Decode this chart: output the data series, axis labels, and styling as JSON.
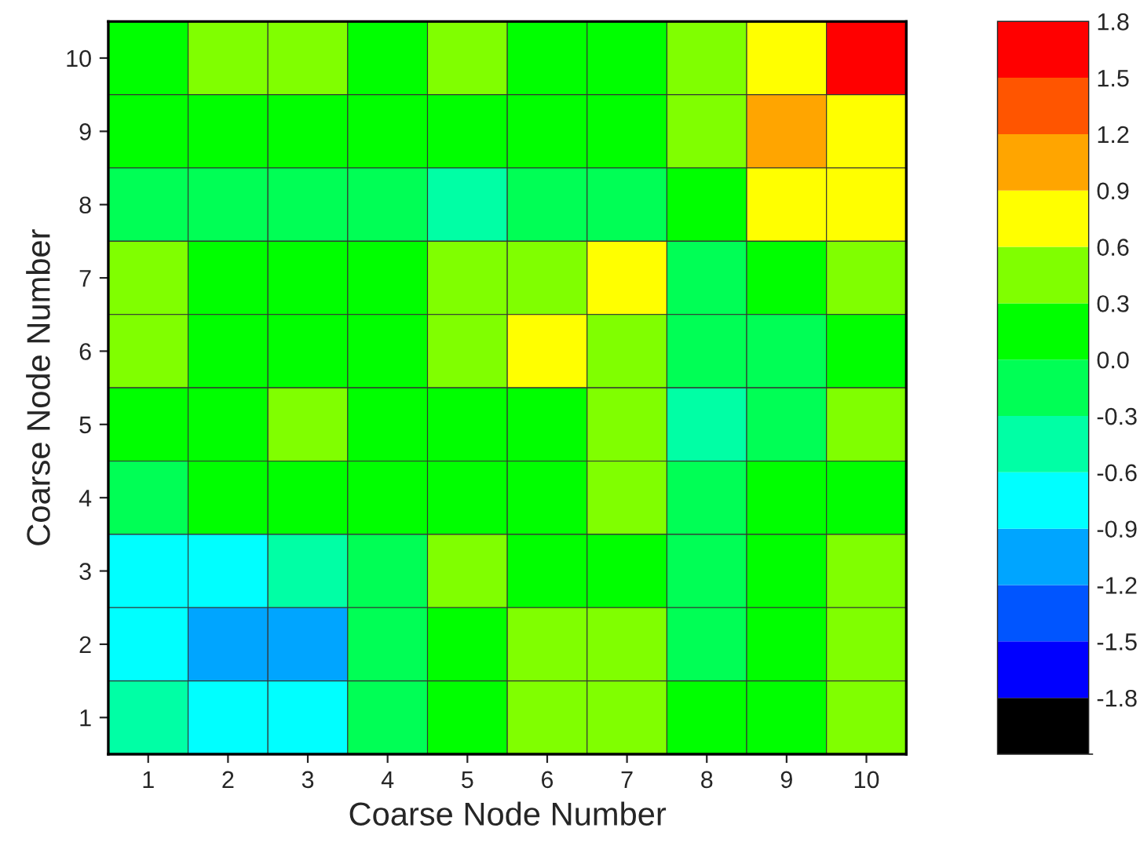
{
  "chart_data": {
    "type": "heatmap",
    "xlabel": "Coarse Node Number",
    "ylabel": "Coarse Node Number",
    "categories": [
      "1",
      "2",
      "3",
      "4",
      "5",
      "6",
      "7",
      "8",
      "9",
      "10"
    ],
    "y_categories": [
      "10",
      "9",
      "8",
      "7",
      "6",
      "5",
      "4",
      "3",
      "2",
      "1"
    ],
    "cells": [
      [
        0.25,
        0.4,
        0.35,
        0.2,
        0.35,
        0.2,
        0.1,
        0.35,
        0.8,
        1.6
      ],
      [
        0.1,
        0.25,
        0.25,
        0.15,
        0.05,
        0.1,
        0.2,
        0.35,
        1.0,
        0.75
      ],
      [
        -0.1,
        -0.1,
        -0.1,
        -0.1,
        -0.35,
        -0.1,
        -0.05,
        0.15,
        0.65,
        0.65
      ],
      [
        0.55,
        0.2,
        0.1,
        0.25,
        0.35,
        0.4,
        0.65,
        -0.05,
        0.2,
        0.3
      ],
      [
        0.4,
        0.15,
        0.1,
        0.2,
        0.35,
        0.65,
        0.4,
        -0.1,
        -0.1,
        0.2
      ],
      [
        0.25,
        0.25,
        0.35,
        0.2,
        0.15,
        0.2,
        0.35,
        -0.35,
        -0.05,
        0.4
      ],
      [
        -0.05,
        0.1,
        0.1,
        0.15,
        0.2,
        0.25,
        0.35,
        -0.1,
        0.05,
        0.2
      ],
      [
        -0.7,
        -0.65,
        -0.5,
        -0.1,
        0.35,
        0.15,
        0.2,
        -0.1,
        0.1,
        0.35
      ],
      [
        -0.7,
        -1.0,
        -1.0,
        -0.3,
        0.1,
        0.3,
        0.35,
        -0.05,
        0.2,
        0.35
      ],
      [
        -0.4,
        -0.7,
        -0.75,
        -0.2,
        0.25,
        0.35,
        0.5,
        0.1,
        0.15,
        0.3
      ]
    ],
    "clim": [
      -2.1,
      1.8
    ],
    "cticks": [
      -1.8,
      -1.5,
      -1.2,
      -0.9,
      -0.6,
      -0.3,
      {
        "value": 0,
        "label": "0.0"
      },
      0.3,
      0.6,
      0.9,
      1.2,
      1.5,
      1.8
    ],
    "colors": [
      "#000000",
      "#0000ff",
      "#0055ff",
      "#00a5ff",
      "#00ffff",
      "#00ffa5",
      "#00ff55",
      "#00ff00",
      "#80ff00",
      "#ffff00",
      "#ffa500",
      "#ff5500",
      "#ff0000"
    ]
  }
}
